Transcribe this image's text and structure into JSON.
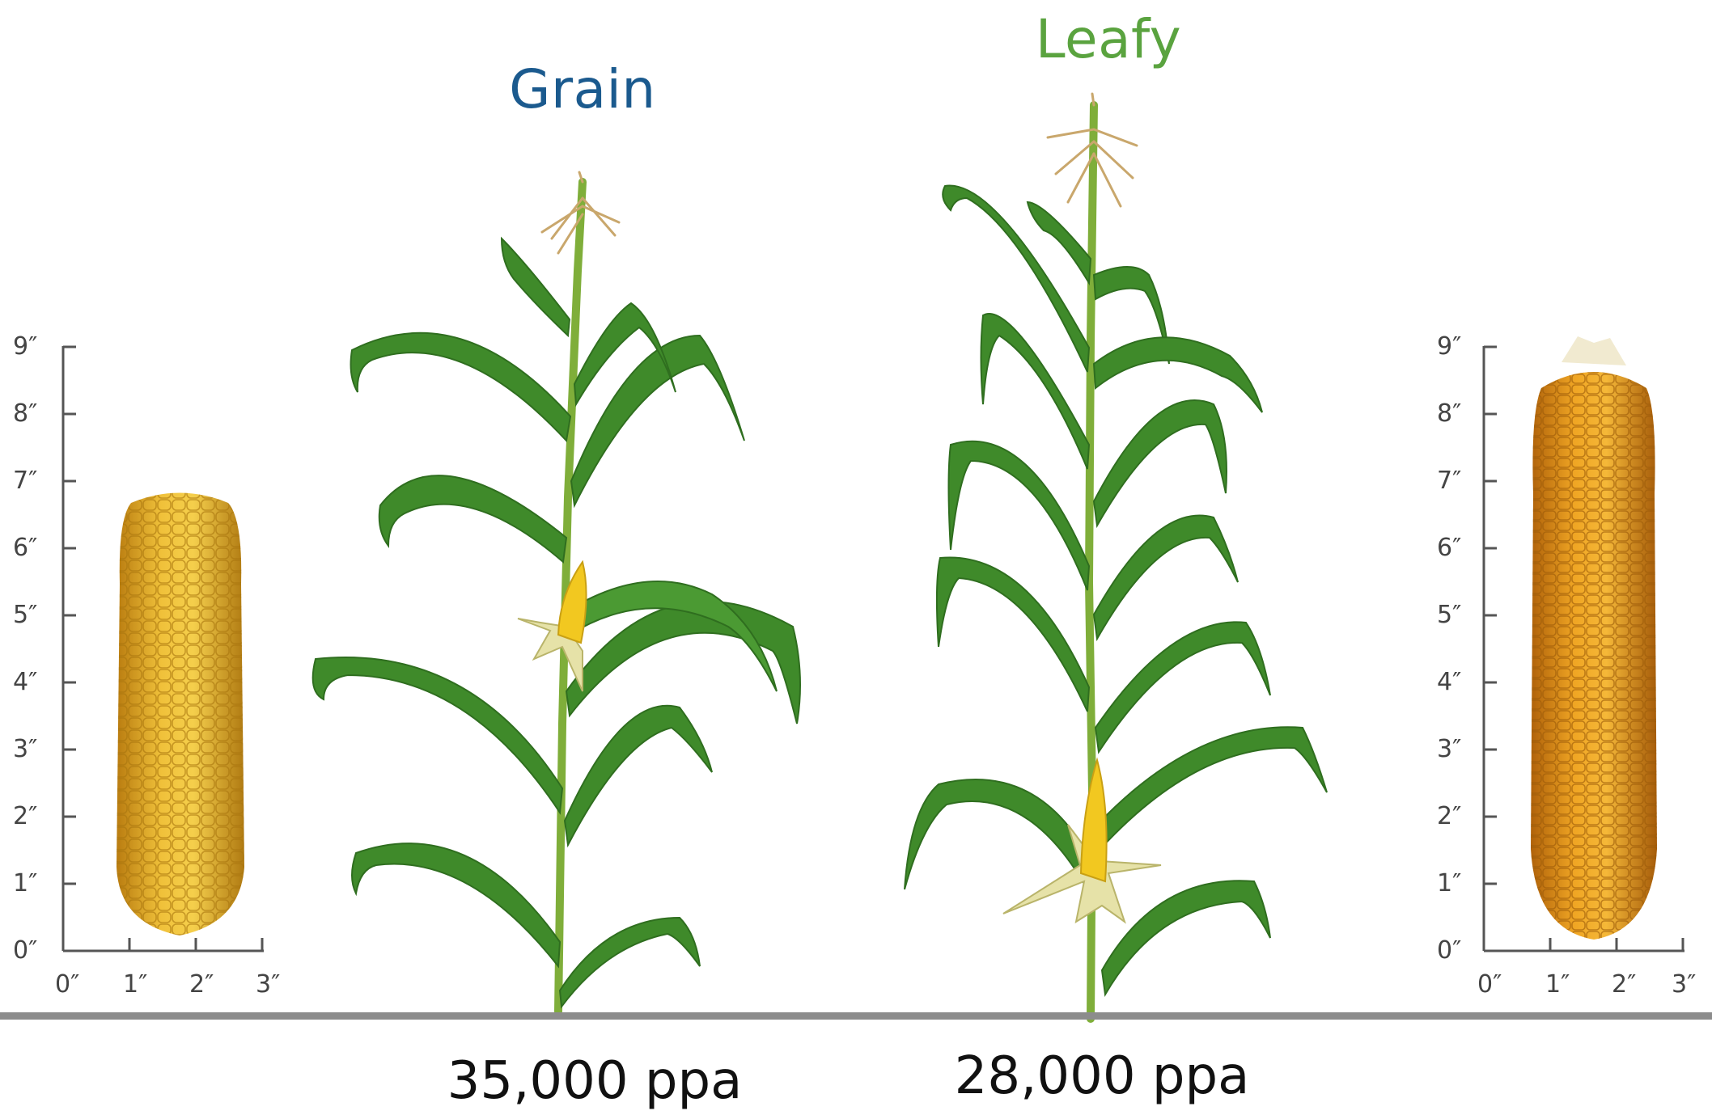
{
  "titles": {
    "grain": "Grain",
    "leafy": "Leafy"
  },
  "densities": {
    "grain": "35,000 ppa",
    "leafy": "28,000 ppa"
  },
  "scales": {
    "vertical_ticks": [
      "0″",
      "1″",
      "2″",
      "3″",
      "4″",
      "5″",
      "6″",
      "7″",
      "8″",
      "9″"
    ],
    "horizontal_ticks": [
      "0″",
      "1″",
      "2″",
      "3″"
    ]
  },
  "colors": {
    "grain_title": "#1b5a8e",
    "leafy_title": "#5aa33f",
    "stalk": "#7fae3a",
    "leaf": "#3f8a2a",
    "leaf_light": "#6fb042",
    "kernel": "#e8b42a",
    "kernel_orange": "#e79a1e",
    "axis": "#555555",
    "ground": "#8c8c8c"
  }
}
